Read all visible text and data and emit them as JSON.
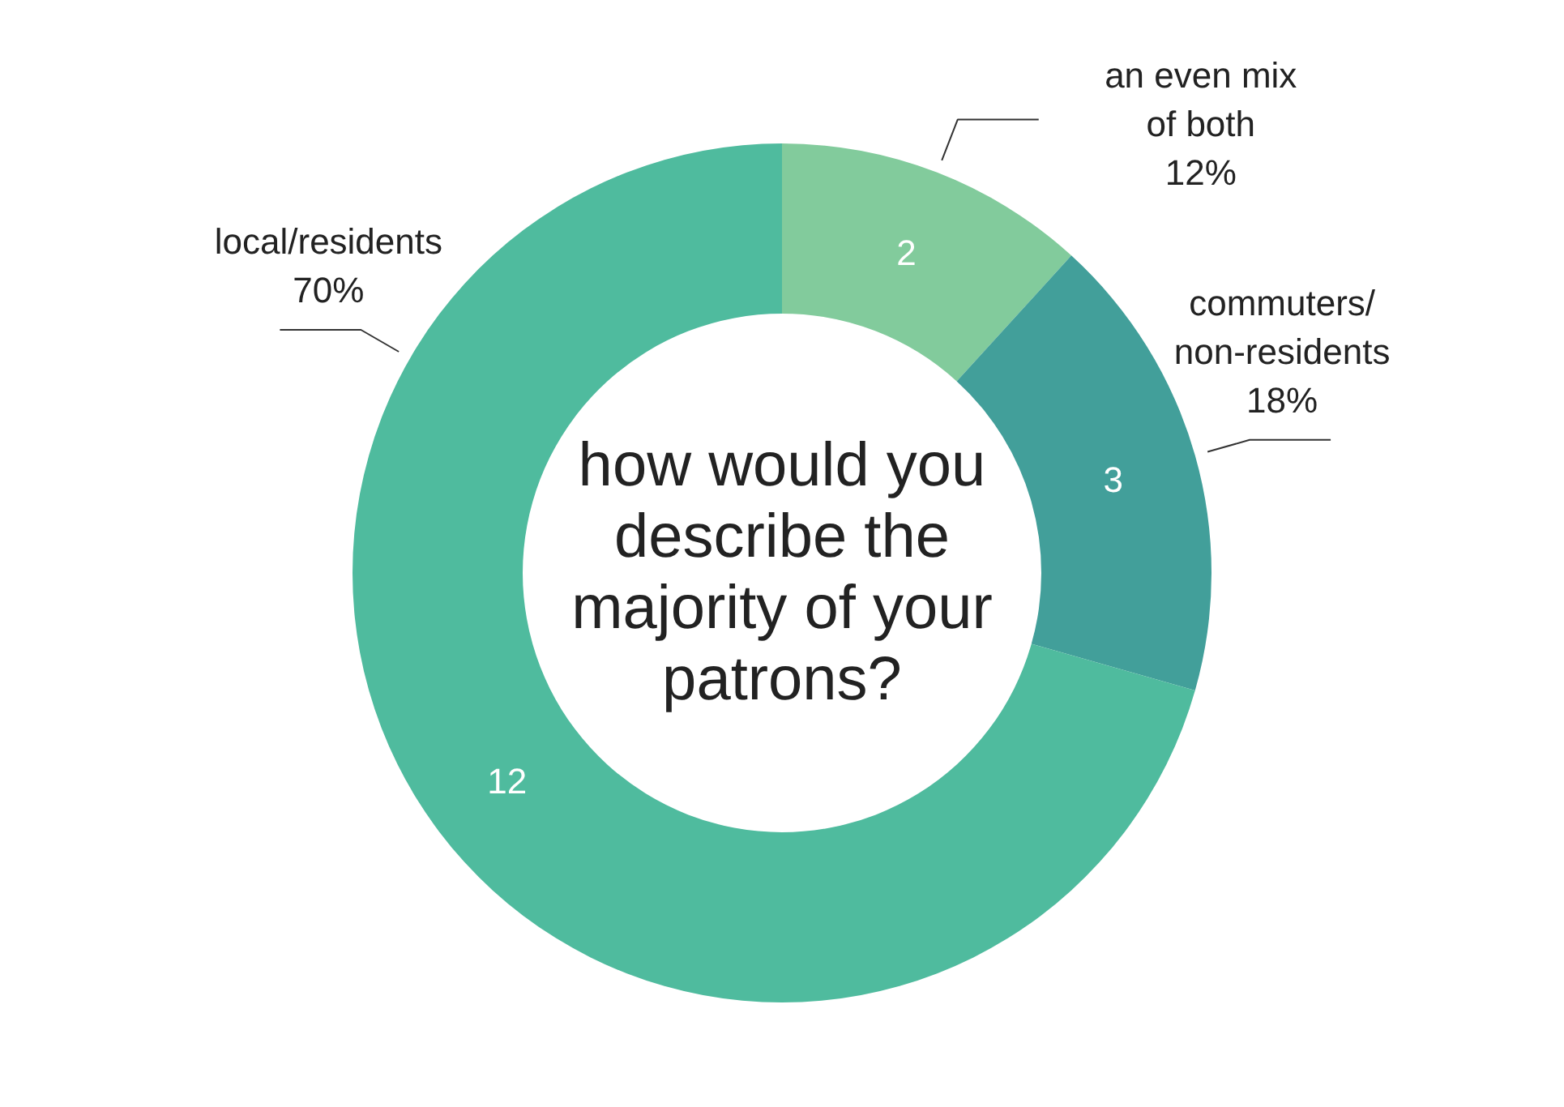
{
  "chart_data": {
    "type": "donut",
    "title": "how would you describe the majority of your patrons?",
    "categories": [
      "an even mix of both",
      "commuters/ non-residents",
      "local/residents"
    ],
    "values": [
      2,
      3,
      12
    ],
    "colors": [
      "#82cb9c",
      "#429f9a",
      "#4fbb9e"
    ],
    "data_labels": true,
    "annotations": [
      {
        "text": "12%",
        "x": "an even mix of both"
      },
      {
        "text": "18%",
        "x": "commuters/ non-residents"
      },
      {
        "text": "70%",
        "x": "local/residents"
      }
    ]
  }
}
